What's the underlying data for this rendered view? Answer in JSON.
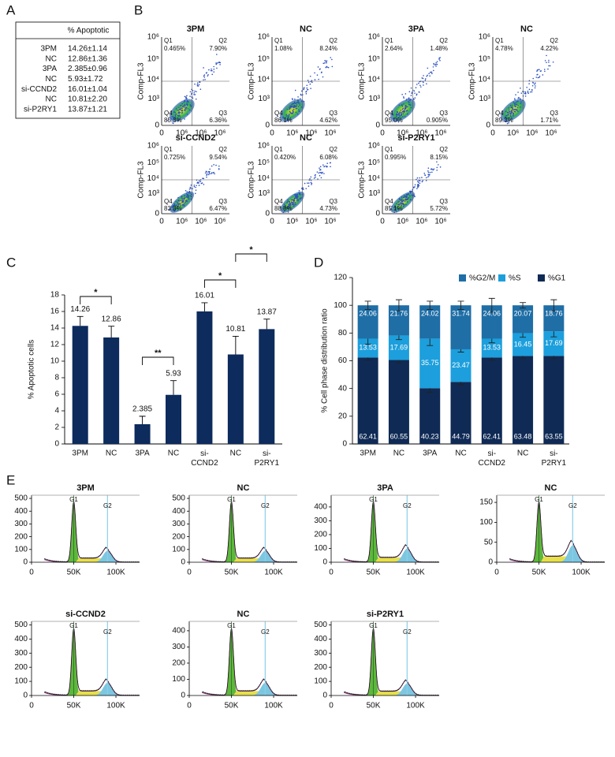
{
  "panel_labels": [
    "A",
    "B",
    "C",
    "D",
    "E"
  ],
  "table": {
    "header": "% Apoptotic",
    "rows": [
      [
        "3PM",
        "14.26±1.14"
      ],
      [
        "NC",
        "12.86±1.36"
      ],
      [
        "3PA",
        "2.385±0.96"
      ],
      [
        "NC",
        "5.93±1.72"
      ],
      [
        "si-CCND2",
        "16.01±1.04"
      ],
      [
        "NC",
        "10.81±2.20"
      ],
      [
        "si-P2RY1",
        "13.87±1.21"
      ]
    ]
  },
  "flow_plots": {
    "y_label": "Comp-FL3",
    "y_tick_labels": [
      "10⁶",
      "10⁵",
      "10⁴",
      "10³",
      "0"
    ],
    "x_tick_labels": [
      "0",
      "10⁶",
      "10⁶",
      "10⁶"
    ],
    "quadrants": [
      "Q1",
      "Q2",
      "Q3",
      "Q4"
    ],
    "plots": [
      {
        "title": "3PM",
        "Q1": "0.465%",
        "Q2": "7.90%",
        "Q3": "6.36%",
        "Q4": "85.3%"
      },
      {
        "title": "NC",
        "Q1": "1.08%",
        "Q2": "8.24%",
        "Q3": "4.62%",
        "Q4": "86.1%"
      },
      {
        "title": "3PA",
        "Q1": "2.64%",
        "Q2": "1.48%",
        "Q3": "0.905%",
        "Q4": "95.0%"
      },
      {
        "title": "NC",
        "Q1": "4.78%",
        "Q2": "4.22%",
        "Q3": "1.71%",
        "Q4": "89.3%"
      },
      {
        "title": "si-CCND2",
        "Q1": "0.725%",
        "Q2": "9.54%",
        "Q3": "6.47%",
        "Q4": "83.3%"
      },
      {
        "title": "NC",
        "Q1": "0.420%",
        "Q2": "6.08%",
        "Q3": "4.73%",
        "Q4": "88.8%"
      },
      {
        "title": "si-P2RY1",
        "Q1": "0.995%",
        "Q2": "8.15%",
        "Q3": "5.72%",
        "Q4": "85.1%"
      }
    ]
  },
  "chart_data": [
    {
      "type": "bar",
      "y_label": "% Apoptotic cells",
      "categories": [
        "3PM",
        "NC",
        "3PA",
        "NC",
        "si-CCND2",
        "NC",
        "si-P2RY1"
      ],
      "values": [
        14.26,
        12.86,
        2.385,
        5.93,
        16.01,
        10.81,
        13.87
      ],
      "errors": [
        1.14,
        1.36,
        0.96,
        1.72,
        1.04,
        2.2,
        1.21
      ],
      "color": "#0d2b5c",
      "ylim": [
        0,
        18
      ],
      "yticks": [
        0,
        2,
        4,
        6,
        8,
        10,
        12,
        14,
        16,
        18
      ],
      "annotations": [
        "*",
        "**",
        "*",
        "*"
      ]
    },
    {
      "type": "stacked_bar",
      "y_label": "% Cell phase distribution ratio",
      "categories": [
        "3PM",
        "NC",
        "3PA",
        "NC",
        "si-CCND2",
        "NC",
        "si-P2RY1"
      ],
      "series": [
        {
          "name": "%G1",
          "color": "#0f2a55",
          "values": [
            62.41,
            60.55,
            40.23,
            44.79,
            62.41,
            63.48,
            63.55
          ],
          "errors": [
            2,
            2,
            3,
            2,
            2,
            2,
            2
          ]
        },
        {
          "name": "%S",
          "color": "#1c9fdc",
          "values": [
            13.53,
            17.69,
            35.75,
            23.47,
            13.53,
            16.45,
            17.69
          ],
          "errors": [
            4,
            3,
            5,
            2,
            3,
            3,
            4
          ]
        },
        {
          "name": "%G2/M",
          "color": "#1f6ea6",
          "values": [
            24.06,
            21.76,
            24.02,
            31.74,
            24.06,
            20.07,
            18.76
          ],
          "errors": [
            3,
            4,
            3,
            3,
            5,
            2,
            4
          ]
        }
      ],
      "ylim": [
        0,
        120
      ],
      "yticks": [
        0,
        20,
        40,
        60,
        80,
        100,
        120
      ],
      "legend": "top-right"
    }
  ],
  "histograms": {
    "xlim": [
      0,
      128000
    ],
    "xticks": [
      0,
      {
        "value": 50000,
        "label": "50K"
      },
      {
        "value": 100000,
        "label": "100K"
      }
    ],
    "peak_labels": [
      "G1",
      "G2"
    ],
    "plots": [
      {
        "title": "3PM",
        "ylim": [
          0,
          525
        ],
        "yticks": [
          0,
          100,
          200,
          300,
          400,
          500
        ]
      },
      {
        "title": "NC",
        "ylim": [
          0,
          525
        ],
        "yticks": [
          0,
          100,
          200,
          300,
          400,
          500
        ]
      },
      {
        "title": "3PA",
        "ylim": [
          0,
          485
        ],
        "yticks": [
          0,
          100,
          200,
          300,
          400
        ]
      },
      {
        "title": "NC",
        "ylim": [
          0,
          168
        ],
        "yticks": [
          0,
          50,
          100,
          150
        ]
      },
      {
        "title": "si-CCND2",
        "ylim": [
          0,
          525
        ],
        "yticks": [
          0,
          100,
          200,
          300,
          400,
          500
        ]
      },
      {
        "title": "NC",
        "ylim": [
          0,
          458
        ],
        "yticks": [
          0,
          100,
          200,
          300,
          400
        ]
      },
      {
        "title": "si-P2RY1",
        "ylim": [
          0,
          525
        ],
        "yticks": [
          0,
          100,
          200,
          300,
          400,
          500
        ]
      }
    ]
  }
}
